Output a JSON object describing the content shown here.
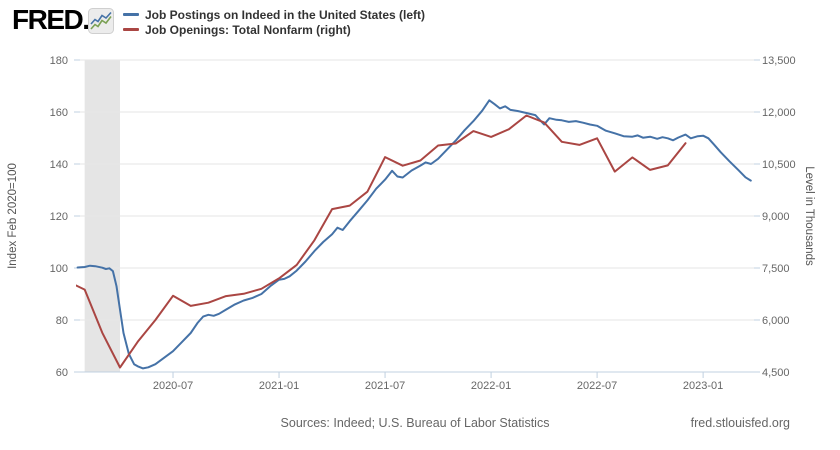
{
  "header": {
    "logo_text": "FRED",
    "logo_reg_mark": ".",
    "logo_icon": {
      "name": "sparkline-icon",
      "line1_color": "#4572a7",
      "line2_color": "#7ba154",
      "bg_color": "#ececec"
    },
    "legend": [
      {
        "label": "Job Postings on Indeed in the United States (left)",
        "color": "#4572a7"
      },
      {
        "label": "Job Openings: Total Nonfarm (right)",
        "color": "#aa4643"
      }
    ]
  },
  "footer": {
    "sources": "Sources: Indeed; U.S. Bureau of Labor Statistics",
    "site": "fred.stlouisfed.org"
  },
  "colors": {
    "series_blue": "#4572a7",
    "series_red": "#aa4643",
    "recession_band": "#e5e5e5",
    "gridline": "#e6e6e6",
    "axis_line": "#c0d0e0",
    "tick_label": "#666666",
    "axis_title": "#555555"
  },
  "chart_data": {
    "type": "line",
    "title": "",
    "x_unit": "months since 2020-01",
    "x_ticks": [
      {
        "t": 6,
        "label": "2020-07"
      },
      {
        "t": 12,
        "label": "2021-01"
      },
      {
        "t": 18,
        "label": "2021-07"
      },
      {
        "t": 24,
        "label": "2022-01"
      },
      {
        "t": 30,
        "label": "2022-07"
      },
      {
        "t": 36,
        "label": "2023-01"
      }
    ],
    "left_axis": {
      "title": "Index Feb 2020=100",
      "min": 60,
      "max": 180,
      "ticks": [
        60,
        80,
        100,
        120,
        140,
        160,
        180
      ]
    },
    "right_axis": {
      "title": "Level in Thousands",
      "min": 4500,
      "max": 13500,
      "ticks": [
        {
          "value": 4500,
          "label": "4,500"
        },
        {
          "value": 6000,
          "label": "6,000"
        },
        {
          "value": 7500,
          "label": "7,500"
        },
        {
          "value": 9000,
          "label": "9,000"
        },
        {
          "value": 10500,
          "label": "10,500"
        },
        {
          "value": 12000,
          "label": "12,000"
        },
        {
          "value": 13500,
          "label": "13,500"
        }
      ]
    },
    "recession_band": {
      "t0": 1,
      "t1": 3,
      "note": "Feb 2020 - Apr 2020 recession shading"
    },
    "series": [
      {
        "name": "Job Postings on Indeed in the United States (left)",
        "axis": "left",
        "color": "#4572a7",
        "points": [
          [
            0.6,
            100.2
          ],
          [
            1,
            100.4
          ],
          [
            1.3,
            100.9
          ],
          [
            1.6,
            100.7
          ],
          [
            2,
            100.1
          ],
          [
            2.2,
            99.6
          ],
          [
            2.4,
            99.9
          ],
          [
            2.6,
            98.8
          ],
          [
            2.8,
            93
          ],
          [
            3,
            84
          ],
          [
            3.2,
            75
          ],
          [
            3.5,
            67
          ],
          [
            3.8,
            63
          ],
          [
            4,
            62.2
          ],
          [
            4.3,
            61.4
          ],
          [
            4.6,
            61.8
          ],
          [
            5,
            63
          ],
          [
            5.5,
            65.5
          ],
          [
            6,
            68
          ],
          [
            6.5,
            71.5
          ],
          [
            7,
            75
          ],
          [
            7.4,
            79
          ],
          [
            7.7,
            81.3
          ],
          [
            8,
            82
          ],
          [
            8.3,
            81.6
          ],
          [
            8.6,
            82.4
          ],
          [
            9,
            84
          ],
          [
            9.5,
            86
          ],
          [
            10,
            87.5
          ],
          [
            10.5,
            88.5
          ],
          [
            11,
            90
          ],
          [
            11.5,
            93
          ],
          [
            12,
            95.5
          ],
          [
            12.3,
            95.8
          ],
          [
            12.6,
            96.8
          ],
          [
            13,
            99
          ],
          [
            13.5,
            102.5
          ],
          [
            14,
            106.5
          ],
          [
            14.5,
            110
          ],
          [
            15,
            113
          ],
          [
            15.3,
            115.5
          ],
          [
            15.6,
            114.6
          ],
          [
            16,
            118
          ],
          [
            16.5,
            122
          ],
          [
            17,
            126
          ],
          [
            17.5,
            130.5
          ],
          [
            18,
            134
          ],
          [
            18.4,
            137.4
          ],
          [
            18.7,
            135.2
          ],
          [
            19,
            134.8
          ],
          [
            19.5,
            137.5
          ],
          [
            20,
            139.4
          ],
          [
            20.3,
            140.6
          ],
          [
            20.6,
            140
          ],
          [
            21,
            142
          ],
          [
            21.5,
            145.5
          ],
          [
            22,
            149
          ],
          [
            22.5,
            153
          ],
          [
            23,
            156.5
          ],
          [
            23.5,
            160.5
          ],
          [
            23.9,
            164.5
          ],
          [
            24.2,
            163
          ],
          [
            24.5,
            161.4
          ],
          [
            24.8,
            162.2
          ],
          [
            25.1,
            160.8
          ],
          [
            25.5,
            160.4
          ],
          [
            26,
            159.6
          ],
          [
            26.5,
            158.8
          ],
          [
            27,
            155.2
          ],
          [
            27.3,
            157.6
          ],
          [
            27.7,
            157
          ],
          [
            28,
            156.8
          ],
          [
            28.4,
            156.2
          ],
          [
            28.8,
            156.5
          ],
          [
            29.2,
            155.9
          ],
          [
            29.6,
            155.2
          ],
          [
            30,
            154.7
          ],
          [
            30.5,
            152.8
          ],
          [
            31,
            151.8
          ],
          [
            31.5,
            150.7
          ],
          [
            32,
            150.5
          ],
          [
            32.3,
            151
          ],
          [
            32.6,
            150.1
          ],
          [
            33,
            150.5
          ],
          [
            33.4,
            149.7
          ],
          [
            33.7,
            150.3
          ],
          [
            34,
            149.9
          ],
          [
            34.3,
            149.1
          ],
          [
            34.6,
            150.2
          ],
          [
            35,
            151.3
          ],
          [
            35.3,
            149.9
          ],
          [
            35.7,
            150.7
          ],
          [
            36,
            150.9
          ],
          [
            36.3,
            149.9
          ],
          [
            36.6,
            147.6
          ],
          [
            37,
            144.5
          ],
          [
            37.5,
            141
          ],
          [
            38,
            137.6
          ],
          [
            38.4,
            134.9
          ],
          [
            38.7,
            133.6
          ]
        ]
      },
      {
        "name": "Job Openings: Total Nonfarm (right)",
        "axis": "right",
        "color": "#aa4643",
        "points": [
          [
            0,
            7121
          ],
          [
            1,
            6876
          ],
          [
            2,
            5631
          ],
          [
            3,
            4630
          ],
          [
            4,
            5371
          ],
          [
            5,
            6001
          ],
          [
            6,
            6697
          ],
          [
            7,
            6408
          ],
          [
            8,
            6500
          ],
          [
            9,
            6689
          ],
          [
            10,
            6756
          ],
          [
            11,
            6900
          ],
          [
            12,
            7200
          ],
          [
            13,
            7590
          ],
          [
            14,
            8300
          ],
          [
            15,
            9200
          ],
          [
            16,
            9300
          ],
          [
            17,
            9700
          ],
          [
            18,
            10700
          ],
          [
            19,
            10450
          ],
          [
            20,
            10600
          ],
          [
            21,
            11033
          ],
          [
            22,
            11091
          ],
          [
            23,
            11448
          ],
          [
            24,
            11283
          ],
          [
            25,
            11500
          ],
          [
            26,
            11900
          ],
          [
            27,
            11700
          ],
          [
            28,
            11140
          ],
          [
            29,
            11050
          ],
          [
            30,
            11240
          ],
          [
            31,
            10280
          ],
          [
            32,
            10690
          ],
          [
            33,
            10330
          ],
          [
            34,
            10460
          ],
          [
            35,
            11100
          ]
        ]
      }
    ]
  }
}
